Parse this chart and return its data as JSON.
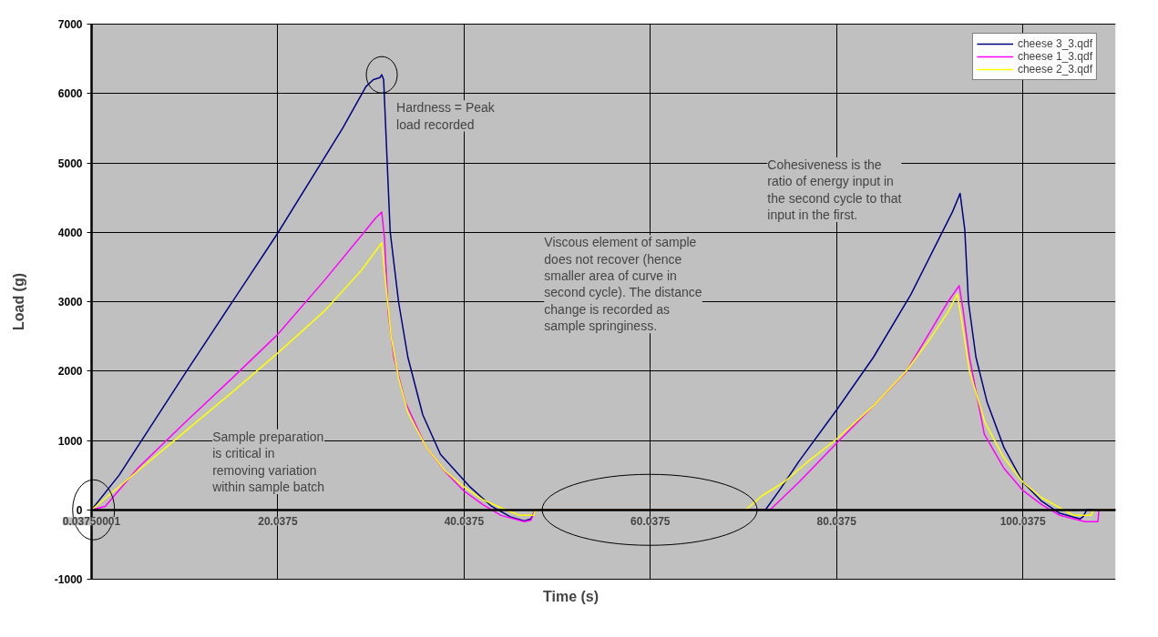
{
  "chart_data": {
    "type": "line",
    "xlabel": "Time (s)",
    "ylabel": "Load (g)",
    "xlim": [
      0.03750001,
      110
    ],
    "xticks": [
      0.03750001,
      20.0375,
      40.0375,
      60.0375,
      80.0375,
      100.0375
    ],
    "ylim": [
      -1000,
      7000
    ],
    "yticks": [
      -1000,
      0,
      1000,
      2000,
      3000,
      4000,
      5000,
      6000,
      7000
    ],
    "grid": true,
    "legend": "top right",
    "series": [
      {
        "name": "cheese 3_3.qdf",
        "color": "#000080",
        "x": [
          0.04,
          3,
          10,
          20.04,
          27,
          29.5,
          30.3,
          31.0,
          31.2,
          31.4,
          32.1,
          33,
          34,
          35.6,
          37.5,
          40.6,
          43,
          45,
          46.5,
          47.2,
          47.7,
          72.4,
          74,
          76,
          80.04,
          84,
          88,
          91,
          92.5,
          93.3,
          93.8,
          94.2,
          95,
          96.2,
          98,
          100.04,
          102,
          104,
          106.2,
          106.5,
          106.9,
          110
        ],
        "values": [
          0,
          500,
          1950,
          3990,
          5500,
          6100,
          6200,
          6230,
          6270,
          6200,
          4010,
          3000,
          2200,
          1370,
          800,
          340,
          50,
          -100,
          -160,
          -130,
          0,
          0,
          300,
          700,
          1440,
          2200,
          3100,
          3900,
          4300,
          4560,
          4040,
          2990,
          2200,
          1550,
          900,
          400,
          130,
          -50,
          -130,
          -100,
          0,
          0
        ]
      },
      {
        "name": "cheese 1_3.qdf",
        "color": "#ff00ff",
        "x": [
          0.04,
          1.5,
          5,
          10,
          15,
          20.04,
          25,
          29,
          30.5,
          31.2,
          31.5,
          31.9,
          32.5,
          33.7,
          35.9,
          38,
          40.04,
          42,
          44,
          46.5,
          47.2,
          47.7,
          72.9,
          76,
          80.04,
          84,
          87.4,
          90,
          92,
          93.2,
          93.6,
          94.3,
          95.9,
          98,
          100.04,
          102,
          104,
          106.7,
          108.1,
          108.2,
          110
        ],
        "values": [
          0,
          50,
          600,
          1250,
          1880,
          2530,
          3300,
          3950,
          4200,
          4290,
          3900,
          2820,
          2200,
          1560,
          920,
          550,
          270,
          80,
          -80,
          -170,
          -150,
          0,
          0,
          400,
          960,
          1500,
          1970,
          2550,
          3000,
          3230,
          2900,
          2200,
          1090,
          600,
          280,
          80,
          -80,
          -170,
          -170,
          0,
          0
        ]
      },
      {
        "name": "cheese 2_3.qdf",
        "color": "#ffff00",
        "x": [
          0.04,
          5,
          10,
          15,
          20.04,
          25,
          29,
          31.2,
          31.6,
          32.2,
          33,
          34,
          36,
          38,
          40.04,
          42,
          44,
          46,
          47.5,
          47.7,
          70.3,
          72,
          74.4,
          77,
          80.04,
          84,
          87.4,
          90,
          92,
          93.0,
          93.5,
          94.3,
          96,
          98,
          100.04,
          102,
          104,
          105.5,
          107.4,
          107.6,
          110
        ],
        "values": [
          0,
          560,
          1120,
          1680,
          2260,
          2860,
          3450,
          3850,
          3300,
          2500,
          1900,
          1400,
          900,
          560,
          330,
          150,
          30,
          -80,
          -80,
          0,
          0,
          200,
          400,
          700,
          1020,
          1500,
          1980,
          2450,
          2850,
          3110,
          2700,
          2000,
          1250,
          750,
          400,
          180,
          30,
          -80,
          -80,
          0,
          0
        ]
      }
    ],
    "annotations": [
      {
        "text": "Hardness = Peak\nload recorded",
        "x": 31.2,
        "y": 6270
      },
      "Sample preparation\nis critical in\nremoving variation\nwithin sample batch",
      "Viscous element of sample\ndoes not recover (hence\nsmaller area of curve in\nsecond cycle). The distance\nchange is recorded as\nsample springiness.",
      "Cohesiveness is the\nratio of energy input in\nthe second cycle to that\ninput in the first."
    ]
  }
}
